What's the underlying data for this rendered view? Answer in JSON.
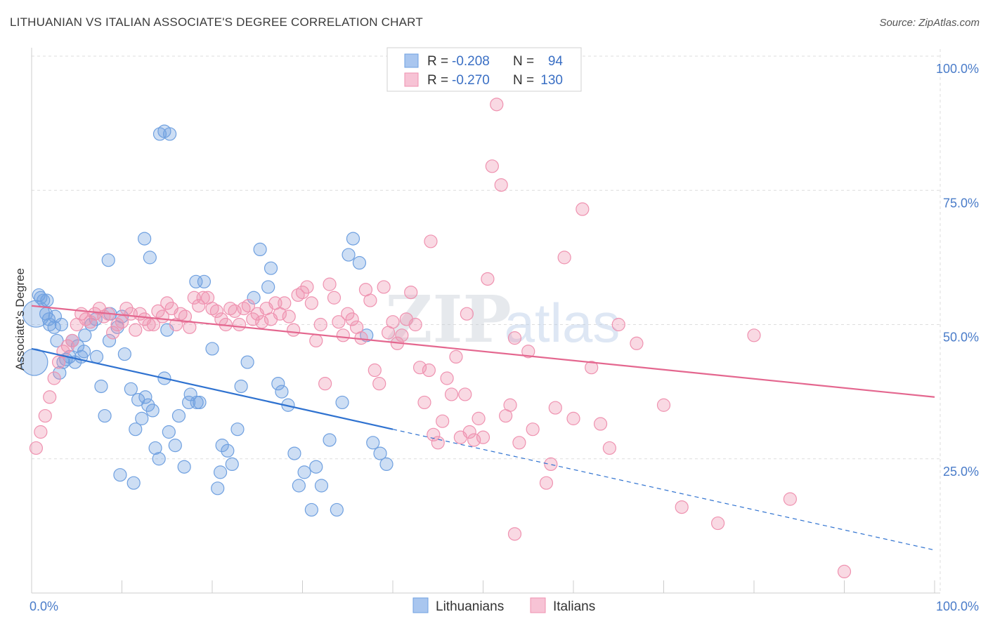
{
  "header": {
    "title": "LITHUANIAN VS ITALIAN ASSOCIATE'S DEGREE CORRELATION CHART",
    "source": "Source: ZipAtlas.com"
  },
  "colors": {
    "blue": "#6fa0e0",
    "blue_line": "#2f72d0",
    "pink": "#ef92b0",
    "pink_line": "#e4678f",
    "grid": "#dddddd",
    "axis_text": "#4a7cc9"
  },
  "legend": {
    "r_label": "R =",
    "n_label": "N =",
    "series": [
      {
        "r": "-0.208",
        "n": "94"
      },
      {
        "r": "-0.270",
        "n": "130"
      }
    ]
  },
  "watermark": {
    "zip": "ZIP",
    "atlas": "atlas"
  },
  "chart_data": {
    "type": "scatter",
    "title": "LITHUANIAN VS ITALIAN ASSOCIATE'S DEGREE CORRELATION CHART",
    "ylabel": "Associate's Degree",
    "xlabel": "",
    "xlim": [
      0,
      100
    ],
    "ylim": [
      0,
      100
    ],
    "x_tick_labels": [
      "0.0%",
      "100.0%"
    ],
    "y_tick_labels": [
      "100.0%",
      "75.0%",
      "50.0%",
      "25.0%"
    ],
    "y_ticks": [
      100,
      75,
      50,
      25
    ],
    "grid": true,
    "legend_position": "top-center",
    "series": [
      {
        "name": "Lithuanians",
        "r": -0.208,
        "n": 94,
        "trend": {
          "x0": 0,
          "y0": 45.5,
          "x1": 40,
          "y1": 30.5,
          "dashed_to": 100,
          "dashed_y": 8
        },
        "points": [
          [
            0.3,
            43,
            1
          ],
          [
            0.5,
            52,
            1
          ],
          [
            0.8,
            55.5,
            0
          ],
          [
            1.0,
            55,
            0
          ],
          [
            1.3,
            54.5,
            0
          ],
          [
            1.7,
            54.5,
            0
          ],
          [
            1.6,
            52,
            0
          ],
          [
            1.9,
            51,
            0
          ],
          [
            2.0,
            50,
            0
          ],
          [
            2.5,
            49.5,
            0
          ],
          [
            2.6,
            51.5,
            0
          ],
          [
            3.3,
            50,
            0
          ],
          [
            2.8,
            47,
            0
          ],
          [
            4.2,
            44,
            0
          ],
          [
            3.5,
            43,
            0
          ],
          [
            3.8,
            43.5,
            0
          ],
          [
            3.1,
            41,
            0
          ],
          [
            4.5,
            47,
            0
          ],
          [
            5.1,
            46,
            0
          ],
          [
            4.8,
            43,
            0
          ],
          [
            5.5,
            44,
            0
          ],
          [
            5.8,
            45,
            0
          ],
          [
            5.9,
            48,
            0
          ],
          [
            6.6,
            50,
            0
          ],
          [
            7.1,
            51,
            0
          ],
          [
            7.2,
            44,
            0
          ],
          [
            7.7,
            38.5,
            0
          ],
          [
            8.1,
            33,
            0
          ],
          [
            8.6,
            47,
            0
          ],
          [
            8.7,
            52,
            0
          ],
          [
            9.5,
            49.5,
            0
          ],
          [
            10.0,
            51.5,
            0
          ],
          [
            10.3,
            44.5,
            0
          ],
          [
            11.0,
            38,
            0
          ],
          [
            11.5,
            30.5,
            0
          ],
          [
            11.8,
            36,
            0
          ],
          [
            12.2,
            32.5,
            0
          ],
          [
            12.6,
            36.5,
            0
          ],
          [
            12.9,
            35,
            0
          ],
          [
            13.4,
            34,
            0
          ],
          [
            13.7,
            27,
            0
          ],
          [
            14.1,
            25,
            0
          ],
          [
            14.7,
            40,
            0
          ],
          [
            15.2,
            30,
            0
          ],
          [
            15.9,
            27.5,
            0
          ],
          [
            16.3,
            33,
            0
          ],
          [
            16.9,
            23.5,
            0
          ],
          [
            17.4,
            35.5,
            0
          ],
          [
            17.6,
            37,
            0
          ],
          [
            18.3,
            35.5,
            0
          ],
          [
            18.6,
            35.5,
            0
          ],
          [
            18.2,
            58,
            0
          ],
          [
            19.1,
            58,
            0
          ],
          [
            20.0,
            45.5,
            0
          ],
          [
            21.1,
            27.5,
            0
          ],
          [
            21.7,
            26.5,
            0
          ],
          [
            22.2,
            24,
            0
          ],
          [
            22.8,
            30.5,
            0
          ],
          [
            23.2,
            38.5,
            0
          ],
          [
            23.9,
            43,
            0
          ],
          [
            24.6,
            55,
            0
          ],
          [
            25.3,
            64,
            0
          ],
          [
            26.2,
            57,
            0
          ],
          [
            26.5,
            60.5,
            0
          ],
          [
            27.3,
            39,
            0
          ],
          [
            27.7,
            37.5,
            0
          ],
          [
            28.4,
            35,
            0
          ],
          [
            29.1,
            26,
            0
          ],
          [
            29.6,
            20,
            0
          ],
          [
            30.2,
            22.5,
            0
          ],
          [
            31.0,
            15.5,
            0
          ],
          [
            31.5,
            23.5,
            0
          ],
          [
            32.1,
            20,
            0
          ],
          [
            33.0,
            28.5,
            0
          ],
          [
            33.8,
            15.5,
            0
          ],
          [
            34.4,
            35.5,
            0
          ],
          [
            35.1,
            63,
            0
          ],
          [
            35.6,
            66,
            0
          ],
          [
            36.3,
            61.5,
            0
          ],
          [
            37.1,
            48,
            0
          ],
          [
            37.8,
            28,
            0
          ],
          [
            38.6,
            26,
            0
          ],
          [
            39.3,
            24,
            0
          ],
          [
            15.0,
            49,
            0
          ],
          [
            20.9,
            22.5,
            0
          ],
          [
            8.5,
            62,
            0
          ],
          [
            12.5,
            66,
            0
          ],
          [
            13.1,
            62.5,
            0
          ],
          [
            14.2,
            85.5,
            0
          ],
          [
            14.7,
            86,
            0
          ],
          [
            15.3,
            85.5,
            0
          ],
          [
            9.8,
            22,
            0
          ],
          [
            11.3,
            20.5,
            0
          ],
          [
            20.6,
            19.5,
            0
          ]
        ]
      },
      {
        "name": "Italians",
        "r": -0.27,
        "n": 130,
        "trend": {
          "x0": 0,
          "y0": 53.5,
          "x1": 100,
          "y1": 36.5
        },
        "points": [
          [
            0.5,
            27,
            0
          ],
          [
            1.0,
            30,
            0
          ],
          [
            1.5,
            33,
            0
          ],
          [
            2.0,
            36.5,
            0
          ],
          [
            2.5,
            40,
            0
          ],
          [
            3.0,
            43,
            0
          ],
          [
            3.5,
            45,
            0
          ],
          [
            4.0,
            46,
            0
          ],
          [
            4.5,
            47,
            0
          ],
          [
            5.0,
            50,
            0
          ],
          [
            5.5,
            52,
            0
          ],
          [
            6.0,
            51,
            0
          ],
          [
            6.5,
            50.5,
            0
          ],
          [
            7.0,
            52,
            0
          ],
          [
            7.5,
            53,
            0
          ],
          [
            8.0,
            51.5,
            0
          ],
          [
            8.5,
            52,
            0
          ],
          [
            9.0,
            48.5,
            0
          ],
          [
            9.5,
            50,
            0
          ],
          [
            10.0,
            50.5,
            0
          ],
          [
            10.5,
            53,
            0
          ],
          [
            11.0,
            52,
            0
          ],
          [
            11.5,
            49,
            0
          ],
          [
            12.0,
            52,
            0
          ],
          [
            12.5,
            51,
            0
          ],
          [
            13.0,
            50,
            0
          ],
          [
            13.5,
            50,
            0
          ],
          [
            14.0,
            52.5,
            0
          ],
          [
            14.5,
            51.5,
            0
          ],
          [
            15.0,
            54,
            0
          ],
          [
            15.5,
            53,
            0
          ],
          [
            16.0,
            50,
            0
          ],
          [
            16.5,
            52,
            0
          ],
          [
            17.0,
            51.5,
            0
          ],
          [
            17.5,
            49.5,
            0
          ],
          [
            18.0,
            55,
            0
          ],
          [
            18.5,
            53.5,
            0
          ],
          [
            19.0,
            55,
            0
          ],
          [
            19.5,
            55,
            0
          ],
          [
            20.0,
            53,
            0
          ],
          [
            20.5,
            52.5,
            0
          ],
          [
            21.0,
            51,
            0
          ],
          [
            21.5,
            50,
            0
          ],
          [
            22.0,
            53,
            0
          ],
          [
            22.5,
            52.5,
            0
          ],
          [
            23.0,
            50,
            0
          ],
          [
            23.5,
            53,
            0
          ],
          [
            24.0,
            53.5,
            0
          ],
          [
            24.5,
            51,
            0
          ],
          [
            25.0,
            52,
            0
          ],
          [
            25.5,
            50.5,
            0
          ],
          [
            26.0,
            53,
            0
          ],
          [
            26.5,
            51,
            0
          ],
          [
            27.0,
            54,
            0
          ],
          [
            27.5,
            52,
            0
          ],
          [
            28.0,
            54,
            0
          ],
          [
            28.5,
            51.5,
            0
          ],
          [
            29.0,
            49,
            0
          ],
          [
            29.5,
            55.5,
            0
          ],
          [
            30.0,
            56,
            0
          ],
          [
            30.5,
            57,
            0
          ],
          [
            31.0,
            54,
            0
          ],
          [
            31.5,
            47,
            0
          ],
          [
            32.0,
            50,
            0
          ],
          [
            32.5,
            39,
            0
          ],
          [
            33.0,
            57.5,
            0
          ],
          [
            33.5,
            55,
            0
          ],
          [
            34.0,
            50.5,
            0
          ],
          [
            34.5,
            48,
            0
          ],
          [
            35.0,
            52,
            0
          ],
          [
            35.5,
            51,
            0
          ],
          [
            36.0,
            49.5,
            0
          ],
          [
            36.5,
            47.5,
            0
          ],
          [
            37.0,
            56.5,
            0
          ],
          [
            37.5,
            54.5,
            0
          ],
          [
            38.0,
            41.5,
            0
          ],
          [
            38.5,
            39,
            0
          ],
          [
            39.0,
            57,
            0
          ],
          [
            39.5,
            48.5,
            0
          ],
          [
            40.0,
            50.5,
            0
          ],
          [
            40.5,
            46.5,
            0
          ],
          [
            41.0,
            48,
            0
          ],
          [
            41.5,
            51,
            0
          ],
          [
            42.0,
            56,
            0
          ],
          [
            42.5,
            50,
            0
          ],
          [
            43.0,
            42,
            0
          ],
          [
            43.5,
            35.5,
            0
          ],
          [
            44.0,
            41.5,
            0
          ],
          [
            44.5,
            29.5,
            0
          ],
          [
            45.0,
            28,
            0
          ],
          [
            45.5,
            32,
            0
          ],
          [
            46.0,
            40,
            0
          ],
          [
            46.5,
            37,
            0
          ],
          [
            47.0,
            44,
            0
          ],
          [
            47.5,
            29,
            0
          ],
          [
            48.0,
            37,
            0
          ],
          [
            48.5,
            30,
            0
          ],
          [
            49.0,
            28.5,
            0
          ],
          [
            49.5,
            32.5,
            0
          ],
          [
            50.0,
            29,
            0
          ],
          [
            50.5,
            58.5,
            0
          ],
          [
            51.0,
            79.5,
            0
          ],
          [
            51.5,
            91,
            0
          ],
          [
            52.0,
            76,
            0
          ],
          [
            52.5,
            33,
            0
          ],
          [
            53.0,
            35,
            0
          ],
          [
            53.5,
            47.5,
            0
          ],
          [
            54.0,
            28,
            0
          ],
          [
            55.0,
            45,
            0
          ],
          [
            55.5,
            30.5,
            0
          ],
          [
            57.0,
            20.5,
            0
          ],
          [
            58.0,
            34.5,
            0
          ],
          [
            59.0,
            62.5,
            0
          ],
          [
            60.0,
            32.5,
            0
          ],
          [
            61.0,
            71.5,
            0
          ],
          [
            62.0,
            42,
            0
          ],
          [
            63.0,
            31.5,
            0
          ],
          [
            64.0,
            27,
            0
          ],
          [
            65.0,
            50,
            0
          ],
          [
            67.0,
            46.5,
            0
          ],
          [
            70.0,
            35,
            0
          ],
          [
            72.0,
            16,
            0
          ],
          [
            76.0,
            13,
            0
          ],
          [
            80.0,
            48,
            0
          ],
          [
            84.0,
            17.5,
            0
          ],
          [
            90.0,
            4,
            0
          ],
          [
            53.5,
            11,
            0
          ],
          [
            57.5,
            24,
            0
          ],
          [
            48.2,
            52,
            0
          ],
          [
            44.2,
            65.5,
            0
          ]
        ]
      }
    ]
  },
  "bottom_legend": {
    "items": [
      {
        "label": "Lithuanians"
      },
      {
        "label": "Italians"
      }
    ]
  }
}
